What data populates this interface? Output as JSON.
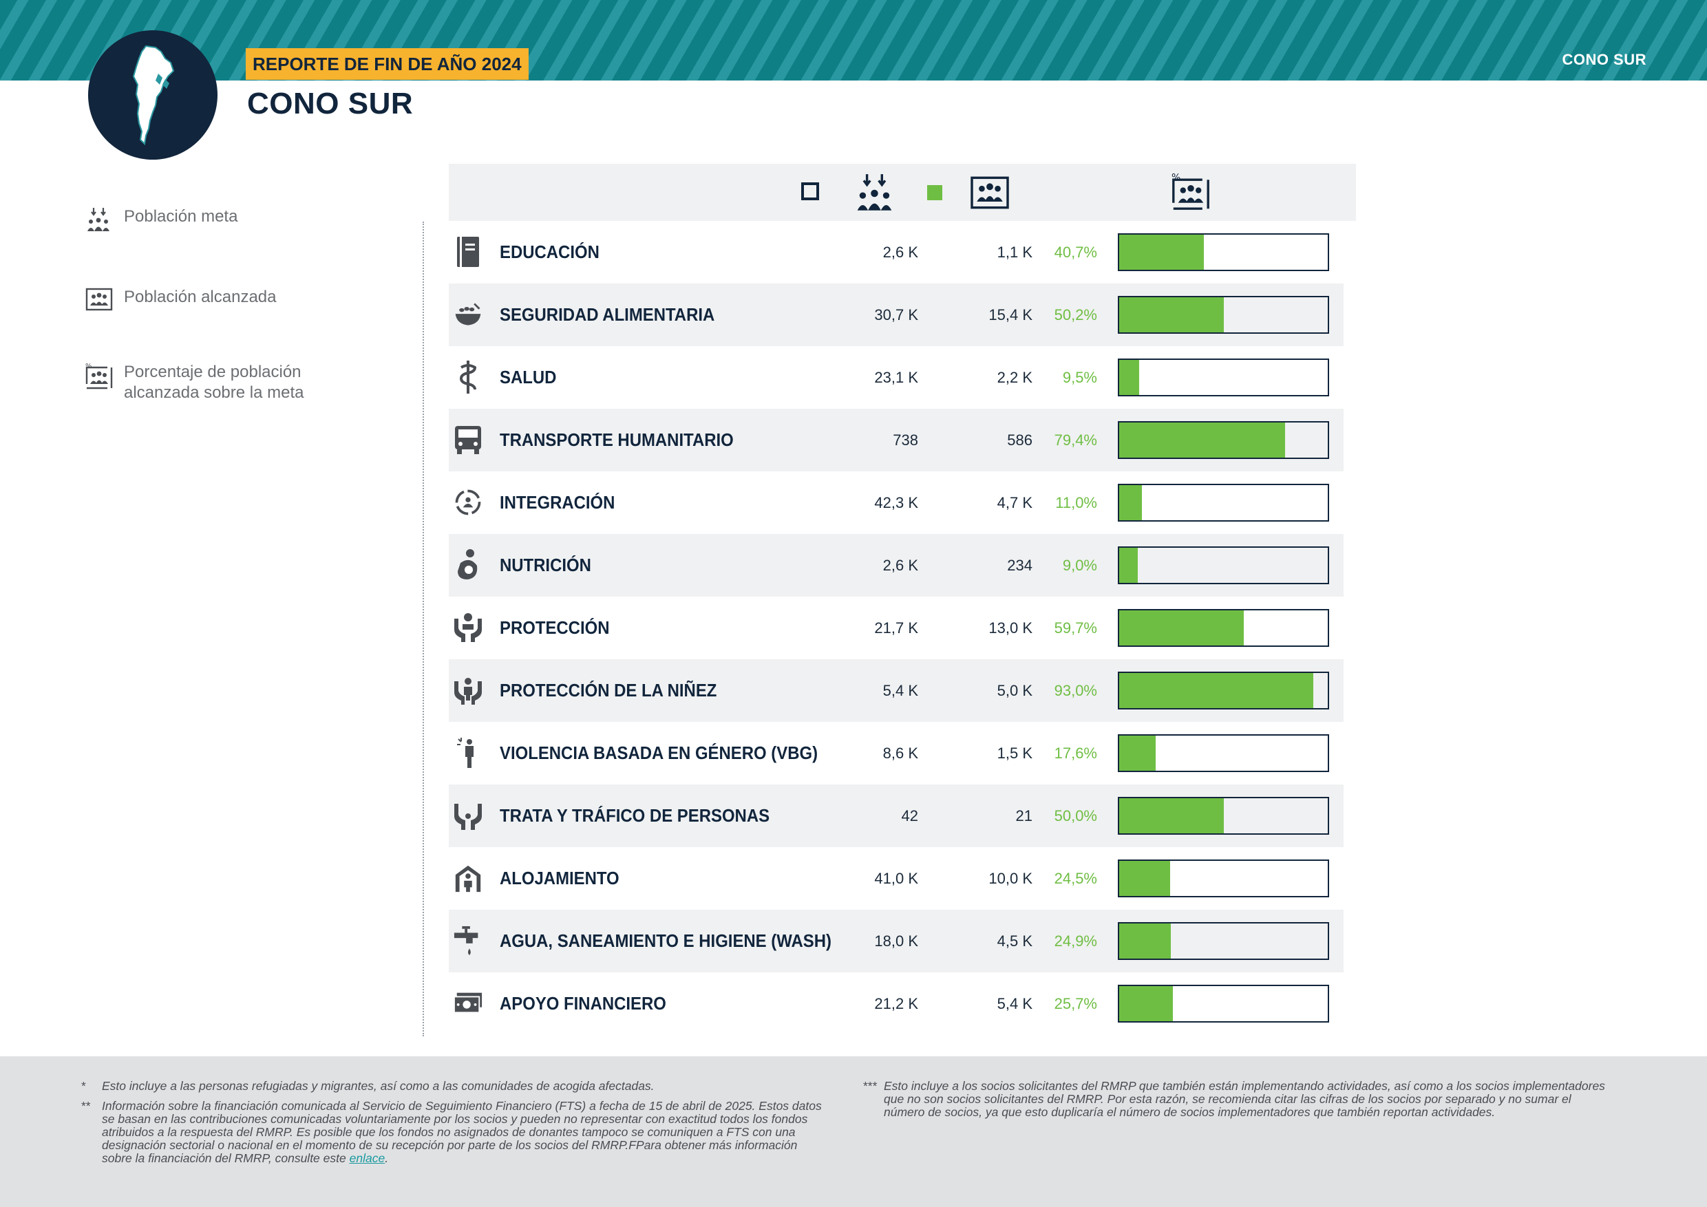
{
  "header": {
    "report_badge": "REPORTE DE FIN DE AÑO 2024",
    "page_title": "CONO SUR",
    "region_tag": "CONO SUR",
    "banner_color": "#0f7f86",
    "badge_color": "#f7b22e"
  },
  "legend": [
    {
      "icon": "target-population-icon",
      "label": "Población meta"
    },
    {
      "icon": "population-reached-icon",
      "label": "Población alcanzada"
    },
    {
      "icon": "percentage-reached-icon",
      "label_line1": "Porcentaje de población",
      "label_line2": "alcanzada sobre la meta"
    }
  ],
  "colors": {
    "progress_fill": "#6fbe44",
    "navy": "#11253c",
    "percent_text": "#6fbe44"
  },
  "sectors": [
    {
      "icon": "book-icon",
      "label": "EDUCACIÓN",
      "target": "2,6 K",
      "reached": "1,1 K",
      "percent": "40,7%",
      "fraction": 0.407
    },
    {
      "icon": "food-bowl-icon",
      "label": "SEGURIDAD ALIMENTARIA",
      "target": "30,7 K",
      "reached": "15,4 K",
      "percent": "50,2%",
      "fraction": 0.502
    },
    {
      "icon": "health-caduceus-icon",
      "label": "SALUD",
      "target": "23,1 K",
      "reached": "2,2 K",
      "percent": "9,5%",
      "fraction": 0.095
    },
    {
      "icon": "bus-icon",
      "label": "TRANSPORTE HUMANITARIO",
      "target": "738",
      "reached": "586",
      "percent": "79,4%",
      "fraction": 0.794
    },
    {
      "icon": "integration-cycle-icon",
      "label": "INTEGRACIÓN",
      "target": "42,3 K",
      "reached": "4,7 K",
      "percent": "11,0%",
      "fraction": 0.11
    },
    {
      "icon": "nutrition-mother-child-icon",
      "label": "NUTRICIÓN",
      "target": "2,6 K",
      "reached": "234",
      "percent": "9,0%",
      "fraction": 0.09
    },
    {
      "icon": "protection-hands-icon",
      "label": "PROTECCIÓN",
      "target": "21,7 K",
      "reached": "13,0 K",
      "percent": "59,7%",
      "fraction": 0.597
    },
    {
      "icon": "child-protection-icon",
      "label": "PROTECCIÓN DE LA NIÑEZ",
      "target": "5,4 K",
      "reached": "5,0 K",
      "percent": "93,0%",
      "fraction": 0.93
    },
    {
      "icon": "gbv-person-icon",
      "label": "VIOLENCIA BASADA EN GÉNERO (VBG)",
      "target": "8,6 K",
      "reached": "1,5 K",
      "percent": "17,6%",
      "fraction": 0.176
    },
    {
      "icon": "trafficking-hands-icon",
      "label": "TRATA Y TRÁFICO DE PERSONAS",
      "target": "42",
      "reached": "21",
      "percent": "50,0%",
      "fraction": 0.5
    },
    {
      "icon": "shelter-icon",
      "label": "ALOJAMIENTO",
      "target": "41,0 K",
      "reached": "10,0 K",
      "percent": "24,5%",
      "fraction": 0.245
    },
    {
      "icon": "water-tap-icon",
      "label": "AGUA, SANEAMIENTO E HIGIENE (WASH)",
      "target": "18,0 K",
      "reached": "4,5 K",
      "percent": "24,9%",
      "fraction": 0.249
    },
    {
      "icon": "cash-icon",
      "label": "APOYO FINANCIERO",
      "target": "21,2 K",
      "reached": "5,4 K",
      "percent": "25,7%",
      "fraction": 0.257
    }
  ],
  "footnotes": {
    "n1_mark": "*",
    "n1_text": "Esto incluye a las personas refugiadas y migrantes, así como a las comunidades de acogida afectadas.",
    "n2_mark": "**",
    "n2_lines": [
      "Información sobre la financiación comunicada al Servicio de Seguimiento Financiero (FTS) a fecha de 15 de abril de 2025. Estos datos",
      "se basan en las contribuciones comunicadas voluntariamente por los socios y pueden no representar con exactitud todos los fondos",
      "atribuidos a la respuesta del RMRP. Es posible que los fondos no asignados de donantes tampoco se comuniquen a FTS con una",
      "designación sectorial o nacional en el momento de su recepción por parte de los socios del RMRP.FPara obtener más información"
    ],
    "n2_last": "sobre la financiación del RMRP, consulte este ",
    "n2_link": "enlace",
    "n2_end": ".",
    "n3_mark": "***",
    "n3_lines": [
      "Esto incluye a los socios solicitantes del RMRP que también están implementando actividades, así como a los socios implementadores",
      "que no son socios solicitantes del RMRP. Por esta razón, se recomienda citar las cifras de los socios por separado y no sumar el",
      "número de socios, ya que esto duplicaría el número de socios implementadores que también reportan actividades."
    ]
  }
}
